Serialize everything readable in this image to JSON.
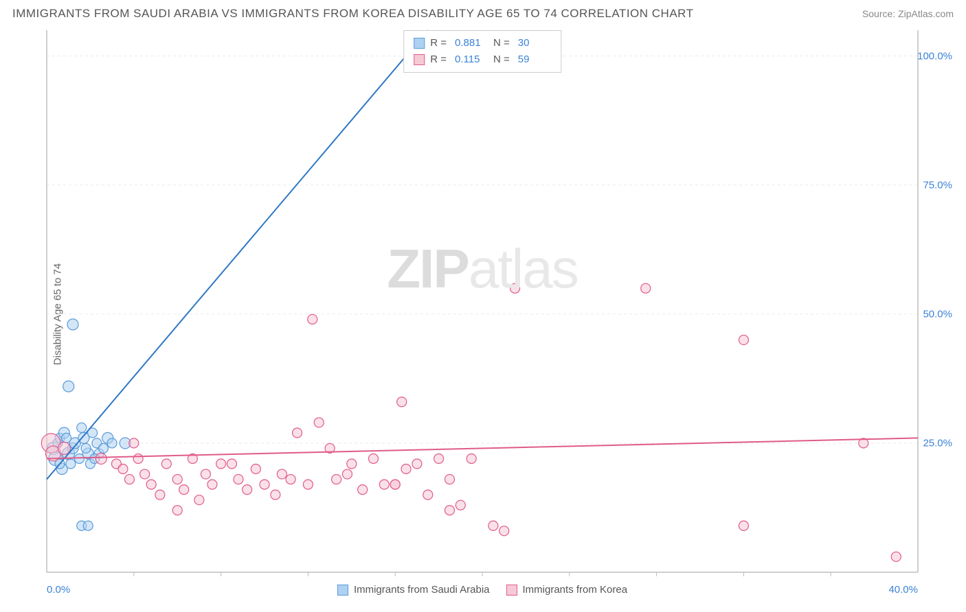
{
  "title": "IMMIGRANTS FROM SAUDI ARABIA VS IMMIGRANTS FROM KOREA DISABILITY AGE 65 TO 74 CORRELATION CHART",
  "source_label": "Source: ",
  "source_name": "ZipAtlas.com",
  "ylabel": "Disability Age 65 to 74",
  "watermark_a": "ZIP",
  "watermark_b": "atlas",
  "chart": {
    "type": "scatter-with-trendlines",
    "xlim": [
      0,
      40
    ],
    "ylim": [
      0,
      105
    ],
    "x_origin_label": "0.0%",
    "x_max_label": "40.0%",
    "y_ticks": [
      {
        "v": 25,
        "label": "25.0%"
      },
      {
        "v": 50,
        "label": "50.0%"
      },
      {
        "v": 75,
        "label": "75.0%"
      },
      {
        "v": 100,
        "label": "100.0%"
      }
    ],
    "x_minor_ticks": [
      4,
      8,
      12,
      16,
      20,
      24,
      28,
      32,
      36
    ],
    "grid_color": "#e9e9e9",
    "axis_color": "#bdbdbd",
    "background_color": "#ffffff",
    "series": [
      {
        "name": "Immigrants from Saudi Arabia",
        "color_fill": "#aed1f2",
        "color_stroke": "#5a9bd8",
        "line_color": "#2f78c4",
        "r_value": "0.881",
        "n_value": "30",
        "trend": {
          "x1": 0,
          "y1": 18,
          "x2": 17.5,
          "y2": 105
        },
        "points": [
          {
            "x": 0.3,
            "y": 24,
            "r": 9
          },
          {
            "x": 0.4,
            "y": 22,
            "r": 10
          },
          {
            "x": 0.5,
            "y": 25,
            "r": 7
          },
          {
            "x": 0.7,
            "y": 20,
            "r": 8
          },
          {
            "x": 0.6,
            "y": 26,
            "r": 7
          },
          {
            "x": 0.8,
            "y": 27,
            "r": 8
          },
          {
            "x": 1.0,
            "y": 23,
            "r": 9
          },
          {
            "x": 1.2,
            "y": 24,
            "r": 8
          },
          {
            "x": 1.1,
            "y": 21,
            "r": 7
          },
          {
            "x": 1.3,
            "y": 25,
            "r": 8
          },
          {
            "x": 1.5,
            "y": 22,
            "r": 7
          },
          {
            "x": 1.7,
            "y": 26,
            "r": 8
          },
          {
            "x": 1.6,
            "y": 28,
            "r": 7
          },
          {
            "x": 1.9,
            "y": 23,
            "r": 8
          },
          {
            "x": 2.0,
            "y": 21,
            "r": 7
          },
          {
            "x": 2.1,
            "y": 27,
            "r": 7
          },
          {
            "x": 2.3,
            "y": 25,
            "r": 7
          },
          {
            "x": 2.4,
            "y": 23,
            "r": 7
          },
          {
            "x": 2.6,
            "y": 24,
            "r": 7
          },
          {
            "x": 2.8,
            "y": 26,
            "r": 8
          },
          {
            "x": 3.0,
            "y": 25,
            "r": 7
          },
          {
            "x": 3.6,
            "y": 25,
            "r": 8
          },
          {
            "x": 2.2,
            "y": 22,
            "r": 7
          },
          {
            "x": 1.8,
            "y": 24,
            "r": 7
          },
          {
            "x": 1.0,
            "y": 36,
            "r": 8
          },
          {
            "x": 1.2,
            "y": 48,
            "r": 8
          },
          {
            "x": 1.6,
            "y": 9,
            "r": 7
          },
          {
            "x": 1.9,
            "y": 9,
            "r": 7
          },
          {
            "x": 0.9,
            "y": 26,
            "r": 7
          },
          {
            "x": 0.6,
            "y": 21,
            "r": 7
          }
        ]
      },
      {
        "name": "Immigrants from Korea",
        "color_fill": "#f6c9d6",
        "color_stroke": "#e05a8a",
        "line_color": "#e05a8a",
        "r_value": "0.115",
        "n_value": "59",
        "trend": {
          "x1": 0,
          "y1": 22,
          "x2": 40,
          "y2": 26
        },
        "points": [
          {
            "x": 0.2,
            "y": 25,
            "r": 14
          },
          {
            "x": 0.3,
            "y": 23,
            "r": 11
          },
          {
            "x": 0.8,
            "y": 24,
            "r": 9
          },
          {
            "x": 2.5,
            "y": 22,
            "r": 8
          },
          {
            "x": 3.2,
            "y": 21,
            "r": 7
          },
          {
            "x": 3.5,
            "y": 20,
            "r": 7
          },
          {
            "x": 3.8,
            "y": 18,
            "r": 7
          },
          {
            "x": 4.2,
            "y": 22,
            "r": 7
          },
          {
            "x": 4.5,
            "y": 19,
            "r": 7
          },
          {
            "x": 4.8,
            "y": 17,
            "r": 7
          },
          {
            "x": 5.2,
            "y": 15,
            "r": 7
          },
          {
            "x": 5.5,
            "y": 21,
            "r": 7
          },
          {
            "x": 6.0,
            "y": 18,
            "r": 7
          },
          {
            "x": 6.3,
            "y": 16,
            "r": 7
          },
          {
            "x": 6.7,
            "y": 22,
            "r": 7
          },
          {
            "x": 7.0,
            "y": 14,
            "r": 7
          },
          {
            "x": 7.3,
            "y": 19,
            "r": 7
          },
          {
            "x": 7.6,
            "y": 17,
            "r": 7
          },
          {
            "x": 8.0,
            "y": 21,
            "r": 7
          },
          {
            "x": 8.5,
            "y": 21,
            "r": 7
          },
          {
            "x": 8.8,
            "y": 18,
            "r": 7
          },
          {
            "x": 9.2,
            "y": 16,
            "r": 7
          },
          {
            "x": 9.6,
            "y": 20,
            "r": 7
          },
          {
            "x": 10.0,
            "y": 17,
            "r": 7
          },
          {
            "x": 10.5,
            "y": 15,
            "r": 7
          },
          {
            "x": 10.8,
            "y": 19,
            "r": 7
          },
          {
            "x": 11.2,
            "y": 18,
            "r": 7
          },
          {
            "x": 11.5,
            "y": 27,
            "r": 7
          },
          {
            "x": 12.0,
            "y": 17,
            "r": 7
          },
          {
            "x": 12.5,
            "y": 29,
            "r": 7
          },
          {
            "x": 13.0,
            "y": 24,
            "r": 7
          },
          {
            "x": 13.3,
            "y": 18,
            "r": 7
          },
          {
            "x": 13.8,
            "y": 19,
            "r": 7
          },
          {
            "x": 14.0,
            "y": 21,
            "r": 7
          },
          {
            "x": 14.5,
            "y": 16,
            "r": 7
          },
          {
            "x": 15.0,
            "y": 22,
            "r": 7
          },
          {
            "x": 15.5,
            "y": 17,
            "r": 7
          },
          {
            "x": 16.0,
            "y": 17,
            "r": 7
          },
          {
            "x": 16.0,
            "y": 17,
            "r": 7
          },
          {
            "x": 16.5,
            "y": 20,
            "r": 7
          },
          {
            "x": 17.0,
            "y": 21,
            "r": 7
          },
          {
            "x": 17.5,
            "y": 15,
            "r": 7
          },
          {
            "x": 18.0,
            "y": 22,
            "r": 7
          },
          {
            "x": 18.5,
            "y": 18,
            "r": 7
          },
          {
            "x": 18.5,
            "y": 12,
            "r": 7
          },
          {
            "x": 19.0,
            "y": 13,
            "r": 7
          },
          {
            "x": 19.5,
            "y": 22,
            "r": 7
          },
          {
            "x": 12.2,
            "y": 49,
            "r": 7
          },
          {
            "x": 16.3,
            "y": 33,
            "r": 7
          },
          {
            "x": 21.5,
            "y": 55,
            "r": 7
          },
          {
            "x": 20.5,
            "y": 9,
            "r": 7
          },
          {
            "x": 21.0,
            "y": 8,
            "r": 7
          },
          {
            "x": 27.5,
            "y": 55,
            "r": 7
          },
          {
            "x": 32.0,
            "y": 45,
            "r": 7
          },
          {
            "x": 32.0,
            "y": 9,
            "r": 7
          },
          {
            "x": 37.5,
            "y": 25,
            "r": 7
          },
          {
            "x": 39.0,
            "y": 3,
            "r": 7
          },
          {
            "x": 4.0,
            "y": 25,
            "r": 7
          },
          {
            "x": 6.0,
            "y": 12,
            "r": 7
          }
        ]
      }
    ]
  },
  "legend_labels": {
    "r": "R =",
    "n": "N ="
  }
}
